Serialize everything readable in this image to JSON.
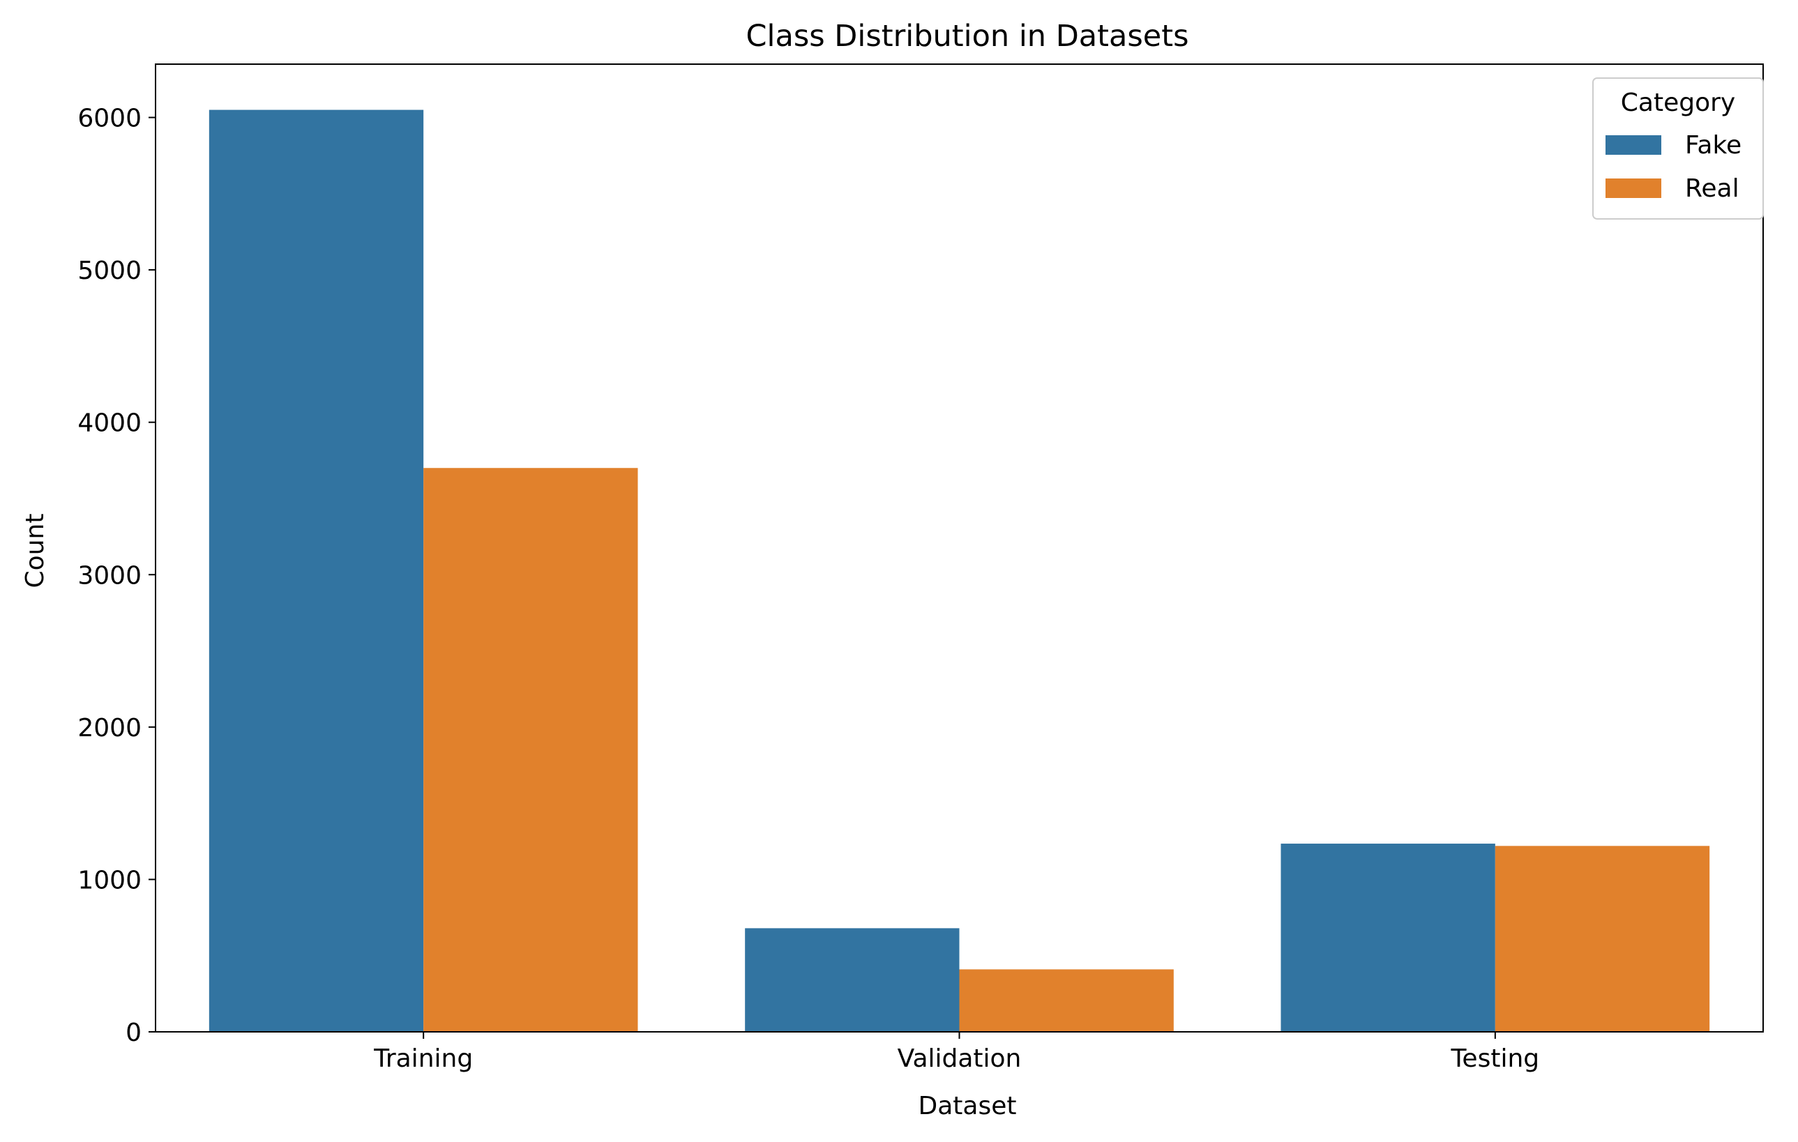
{
  "chart_data": {
    "type": "bar",
    "title": "Class Distribution in Datasets",
    "xlabel": "Dataset",
    "ylabel": "Count",
    "categories": [
      "Training",
      "Validation",
      "Testing"
    ],
    "series": [
      {
        "name": "Fake",
        "values": [
          6050,
          680,
          1235
        ],
        "color": "#3274a1"
      },
      {
        "name": "Real",
        "values": [
          3700,
          410,
          1220
        ],
        "color": "#e1812c"
      }
    ],
    "ylim": [
      0,
      6350
    ],
    "yticks": [
      0,
      1000,
      2000,
      3000,
      4000,
      5000,
      6000
    ],
    "grid": false,
    "legend": {
      "title": "Category",
      "placement": "top-right"
    }
  }
}
